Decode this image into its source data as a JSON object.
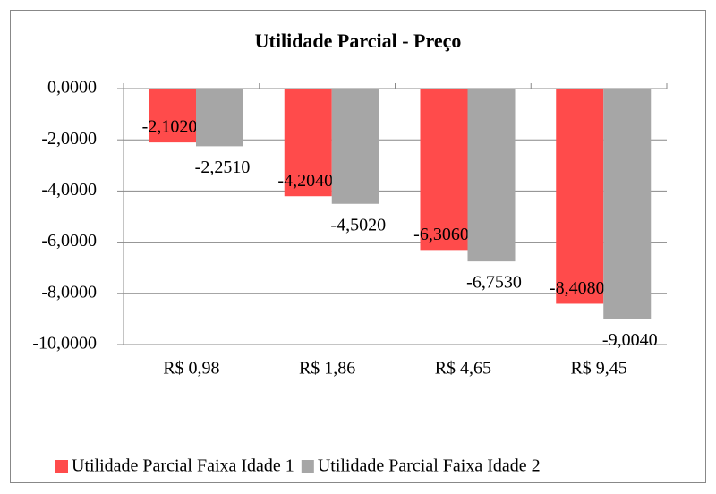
{
  "chart_data": {
    "type": "bar",
    "title": "Utilidade Parcial - Preço",
    "categories": [
      "R$ 0,98",
      "R$ 1,86",
      "R$ 4,65",
      "R$ 9,45"
    ],
    "series": [
      {
        "name": "Utilidade Parcial Faixa Idade 1",
        "color": "#ff4b4b",
        "values": [
          -2.102,
          -4.204,
          -6.306,
          -8.408
        ],
        "value_labels": [
          "-2,1020",
          "-4,2040",
          "-6,3060",
          "-8,4080"
        ]
      },
      {
        "name": "Utilidade Parcial Faixa Idade 2",
        "color": "#a6a6a6",
        "values": [
          -2.251,
          -4.502,
          -6.753,
          -9.004
        ],
        "value_labels": [
          "-2,2510",
          "-4,5020",
          "-6,7530",
          "-9,0040"
        ]
      }
    ],
    "ylim": [
      -10,
      0
    ],
    "yticks": [
      {
        "value": 0,
        "label": "0,0000"
      },
      {
        "value": -2,
        "label": "-2,0000"
      },
      {
        "value": -4,
        "label": "-4,0000"
      },
      {
        "value": -6,
        "label": "-6,0000"
      },
      {
        "value": -8,
        "label": "-8,0000"
      },
      {
        "value": -10,
        "label": "-10,0000"
      }
    ],
    "grid": true,
    "legend": "bottom"
  }
}
